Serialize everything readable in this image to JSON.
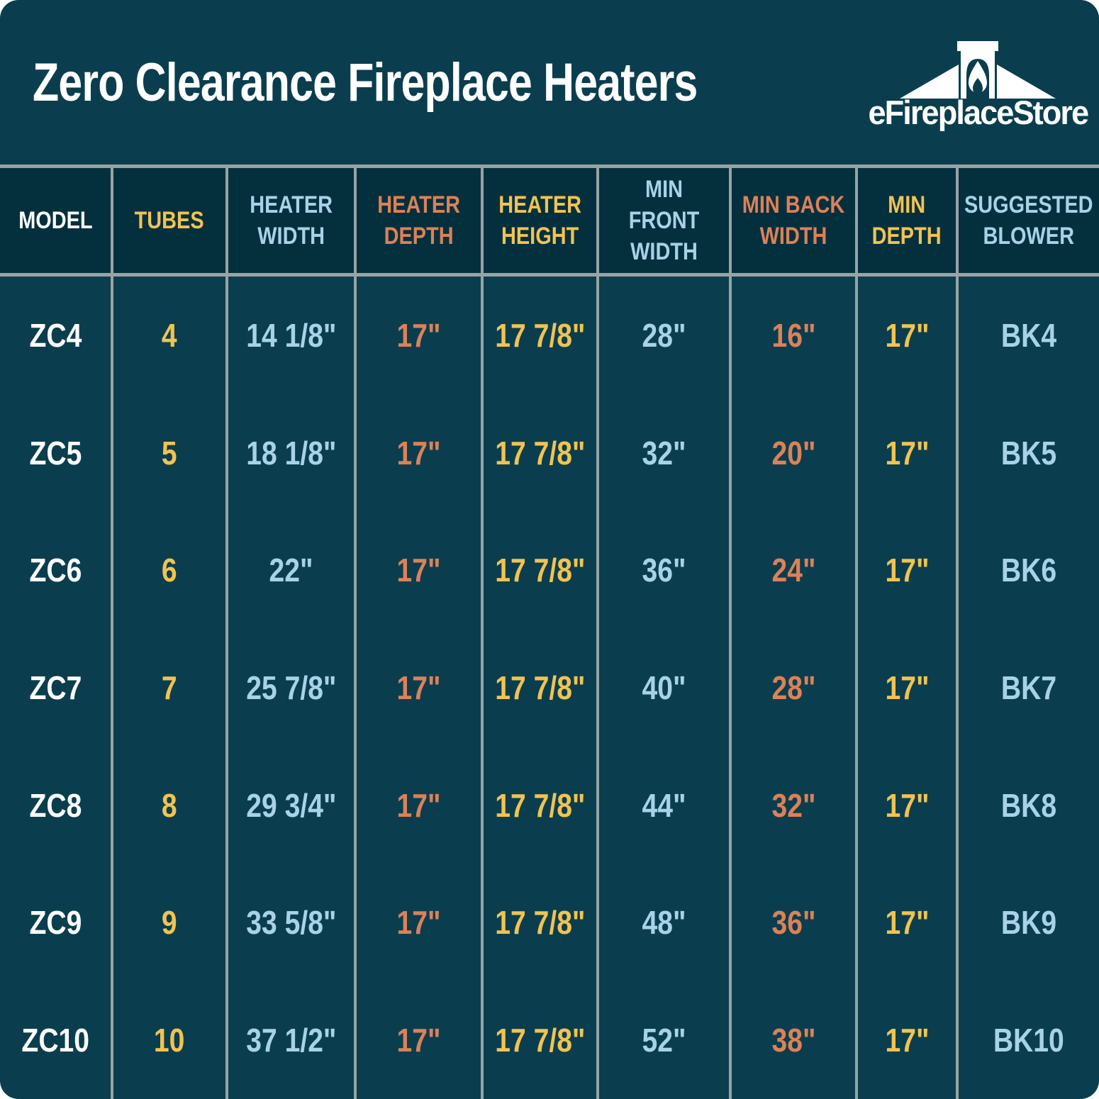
{
  "title": "Zero Clearance Fireplace Heaters",
  "logo": {
    "text": "eFireplaceStore",
    "icon": "fireplace-house-icon"
  },
  "colors": {
    "card_background": "#0a3e4f",
    "header_background": "#04303e",
    "border": "#99a3a4",
    "white": "#ffffff",
    "yellow": "#f2c351",
    "blue": "#a8d2e8",
    "orange": "#dd8157"
  },
  "chart_data": {
    "type": "table",
    "title": "Zero Clearance Fireplace Heaters",
    "columns": [
      {
        "key": "model",
        "label": "MODEL",
        "color": "white"
      },
      {
        "key": "tubes",
        "label": "TUBES",
        "color": "yellow"
      },
      {
        "key": "heater-width",
        "label": "HEATER\nWIDTH",
        "color": "blue"
      },
      {
        "key": "heater-depth",
        "label": "HEATER\nDEPTH",
        "color": "orange"
      },
      {
        "key": "heater-height",
        "label": "HEATER\nHEIGHT",
        "color": "yellow"
      },
      {
        "key": "min-front-width",
        "label": "MIN FRONT\nWIDTH",
        "color": "blue"
      },
      {
        "key": "min-back-width",
        "label": "MIN BACK\nWIDTH",
        "color": "orange"
      },
      {
        "key": "min-depth",
        "label": "MIN\nDEPTH",
        "color": "yellow"
      },
      {
        "key": "suggested-blower",
        "label": "SUGGESTED\nBLOWER",
        "color": "blue"
      }
    ],
    "rows": [
      [
        "ZC4",
        "4",
        "14 1/8\"",
        "17\"",
        "17 7/8\"",
        "28\"",
        "16\"",
        "17\"",
        "BK4"
      ],
      [
        "ZC5",
        "5",
        "18 1/8\"",
        "17\"",
        "17 7/8\"",
        "32\"",
        "20\"",
        "17\"",
        "BK5"
      ],
      [
        "ZC6",
        "6",
        "22\"",
        "17\"",
        "17 7/8\"",
        "36\"",
        "24\"",
        "17\"",
        "BK6"
      ],
      [
        "ZC7",
        "7",
        "25 7/8\"",
        "17\"",
        "17 7/8\"",
        "40\"",
        "28\"",
        "17\"",
        "BK7"
      ],
      [
        "ZC8",
        "8",
        "29 3/4\"",
        "17\"",
        "17 7/8\"",
        "44\"",
        "32\"",
        "17\"",
        "BK8"
      ],
      [
        "ZC9",
        "9",
        "33 5/8\"",
        "17\"",
        "17 7/8\"",
        "48\"",
        "36\"",
        "17\"",
        "BK9"
      ],
      [
        "ZC10",
        "10",
        "37 1/2\"",
        "17\"",
        "17 7/8\"",
        "52\"",
        "38\"",
        "17\"",
        "BK10"
      ]
    ]
  }
}
